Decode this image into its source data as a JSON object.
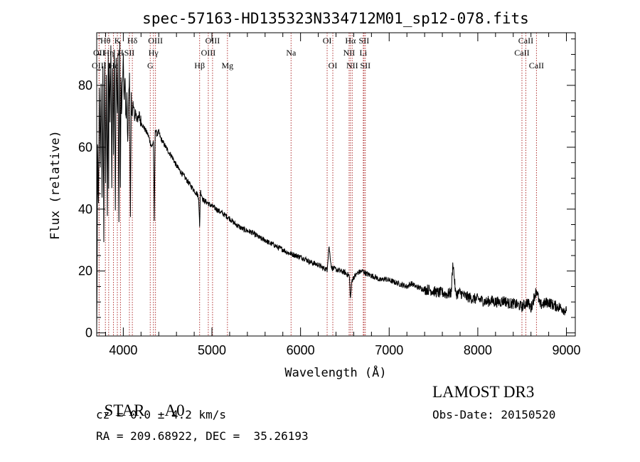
{
  "chart_data": {
    "type": "line",
    "title": "spec-57163-HD135323N334712M01_sp12-078.fits",
    "xlabel": "Wavelength (Å)",
    "ylabel": "Flux (relative)",
    "xlim": [
      3700,
      9100
    ],
    "ylim": [
      -1,
      97
    ],
    "xticks": [
      4000,
      5000,
      6000,
      7000,
      8000,
      9000
    ],
    "yticks": [
      0,
      20,
      40,
      60,
      80
    ],
    "grid": false,
    "series": [
      {
        "name": "flux",
        "x": [
          3700,
          3705,
          3710,
          3720,
          3730,
          3740,
          3750,
          3760,
          3770,
          3780,
          3790,
          3800,
          3810,
          3820,
          3830,
          3835,
          3840,
          3850,
          3860,
          3870,
          3880,
          3889,
          3900,
          3910,
          3920,
          3933,
          3940,
          3950,
          3960,
          3968,
          3975,
          3980,
          3990,
          4000,
          4010,
          4020,
          4030,
          4040,
          4050,
          4060,
          4070,
          4080,
          4090,
          4102,
          4110,
          4120,
          4130,
          4140,
          4150,
          4160,
          4170,
          4180,
          4200,
          4220,
          4240,
          4260,
          4280,
          4300,
          4320,
          4340,
          4350,
          4360,
          4380,
          4400,
          4420,
          4440,
          4460,
          4480,
          4500,
          4550,
          4600,
          4650,
          4700,
          4750,
          4800,
          4830,
          4850,
          4861,
          4870,
          4880,
          4900,
          4950,
          5000,
          5050,
          5100,
          5150,
          5200,
          5250,
          5300,
          5350,
          5400,
          5450,
          5500,
          5550,
          5600,
          5650,
          5700,
          5750,
          5800,
          5850,
          5900,
          5950,
          6000,
          6050,
          6100,
          6150,
          6200,
          6250,
          6300,
          6320,
          6350,
          6400,
          6450,
          6500,
          6550,
          6563,
          6580,
          6600,
          6650,
          6700,
          6750,
          6800,
          6850,
          6900,
          6950,
          7000,
          7050,
          7100,
          7150,
          7200,
          7250,
          7300,
          7350,
          7400,
          7450,
          7500,
          7550,
          7600,
          7650,
          7700,
          7720,
          7750,
          7800,
          7850,
          7900,
          7950,
          8000,
          8050,
          8100,
          8150,
          8200,
          8250,
          8300,
          8350,
          8400,
          8450,
          8500,
          8542,
          8560,
          8600,
          8662,
          8700,
          8750,
          8800,
          8850,
          8900,
          8950,
          9000
        ],
        "y": [
          1,
          20,
          60,
          40,
          78,
          55,
          82,
          42,
          85,
          30,
          88,
          50,
          84,
          38,
          90,
          45,
          87,
          70,
          92,
          48,
          86,
          60,
          94,
          40,
          89,
          70,
          90,
          35,
          92,
          45,
          85,
          70,
          80,
          88,
          75,
          82,
          68,
          78,
          60,
          76,
          85,
          36,
          76,
          70,
          74,
          71,
          70,
          72,
          69,
          71,
          68,
          70,
          68,
          67,
          66,
          65,
          64,
          62,
          60,
          62,
          36,
          66,
          64,
          65,
          63,
          62,
          61,
          60,
          59,
          57,
          54,
          52,
          50,
          48,
          46,
          45,
          44,
          34,
          46,
          45,
          43,
          42,
          41,
          40,
          39,
          38,
          37,
          35.5,
          34.5,
          33.5,
          33,
          32.5,
          31.5,
          30.5,
          30,
          29,
          28.5,
          27.5,
          27,
          26,
          25.5,
          25,
          24.5,
          24,
          23,
          22.5,
          22,
          21,
          20.5,
          28,
          21,
          20.5,
          20,
          19.5,
          18.5,
          11,
          17,
          18,
          19.5,
          20,
          19,
          18.5,
          18,
          17,
          17.5,
          17,
          16.5,
          16,
          15.5,
          15,
          16,
          15,
          14.5,
          14,
          14,
          13.5,
          13,
          13,
          12.5,
          13,
          23,
          12.5,
          13,
          12,
          11.5,
          11,
          11,
          10.5,
          10,
          10.5,
          10,
          10,
          10.5,
          9.5,
          9.5,
          9,
          8.5,
          9.5,
          10,
          8,
          14,
          9,
          9.5,
          10,
          9,
          8.5,
          8,
          7
        ]
      }
    ],
    "lines": [
      {
        "label": "Hθ",
        "row": 1,
        "wl": 3798
      },
      {
        "label": "OII",
        "row": 2,
        "wl": 3727
      },
      {
        "label": "OIII",
        "row": 3,
        "wl": 3727
      },
      {
        "label": "Hη",
        "row": 2,
        "wl": 3835
      },
      {
        "label": "Hε",
        "row": 3,
        "wl": 3889
      },
      {
        "label": "K",
        "row": 1,
        "wl": 3933
      },
      {
        "label": "H",
        "row": 2,
        "wl": 3968
      },
      {
        "label": "SII",
        "row": 2,
        "wl": 4069
      },
      {
        "label": "Hδ",
        "row": 1,
        "wl": 4102
      },
      {
        "label": "OIII",
        "row": 1,
        "wl": 4363
      },
      {
        "label": "Hγ",
        "row": 2,
        "wl": 4340
      },
      {
        "label": "G",
        "row": 3,
        "wl": 4304
      },
      {
        "label": "Hβ",
        "row": 3,
        "wl": 4861
      },
      {
        "label": "OIII",
        "row": 1,
        "wl": 5007
      },
      {
        "label": "OIII",
        "row": 2,
        "wl": 4959
      },
      {
        "label": "Mg",
        "row": 3,
        "wl": 5175
      },
      {
        "label": "Na",
        "row": 2,
        "wl": 5893
      },
      {
        "label": "OI",
        "row": 1,
        "wl": 6300
      },
      {
        "label": "OI",
        "row": 3,
        "wl": 6364
      },
      {
        "label": "Hα",
        "row": 1,
        "wl": 6563
      },
      {
        "label": "NII",
        "row": 2,
        "wl": 6548
      },
      {
        "label": "NII",
        "row": 3,
        "wl": 6583
      },
      {
        "label": "SII",
        "row": 1,
        "wl": 6716
      },
      {
        "label": "Li",
        "row": 2,
        "wl": 6708
      },
      {
        "label": "SII",
        "row": 3,
        "wl": 6731
      },
      {
        "label": "CaII",
        "row": 1,
        "wl": 8542
      },
      {
        "label": "CaII",
        "row": 2,
        "wl": 8498
      },
      {
        "label": "CaII",
        "row": 3,
        "wl": 8662
      }
    ]
  },
  "info": {
    "class_label": "STAR",
    "subclass": "A0",
    "redshift": "cz = 0.0 ± 4.2 km/s",
    "coords": "RA = 209.68922, DEC =  35.26193",
    "survey": "LAMOST DR3",
    "obs_date": "Obs-Date: 20150520"
  },
  "colors": {
    "line_marker": "#b03030",
    "spectrum": "#000000",
    "axes": "#000000"
  }
}
